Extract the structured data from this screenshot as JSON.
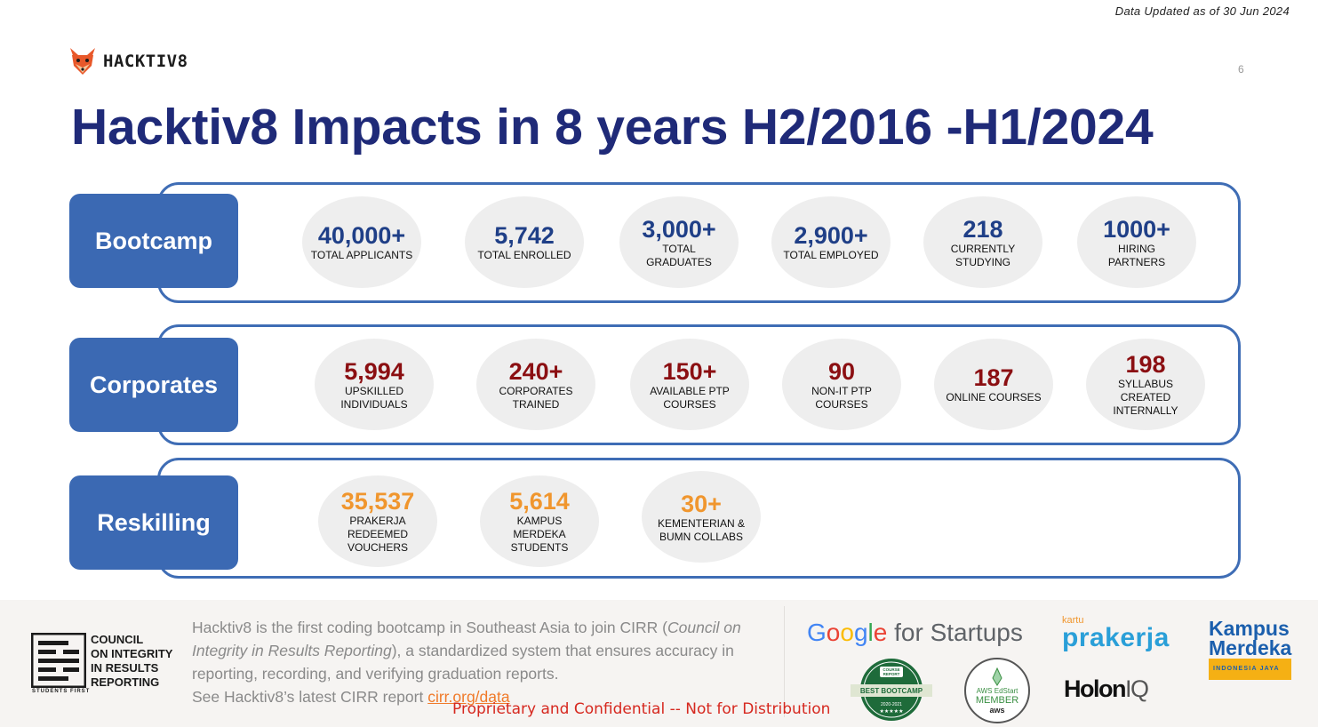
{
  "header": {
    "updated": "Data Updated as of 30 Jun 2024",
    "page_number": "6",
    "logo_text": "HACKTIV8",
    "title": "Hacktiv8 Impacts in 8 years H2/2016 -H1/2024"
  },
  "rows": [
    {
      "label": "Bootcamp",
      "color": "#1f3f87",
      "stats": [
        {
          "value": "40,000+",
          "label": "TOTAL APPLICANTS"
        },
        {
          "value": "5,742",
          "label": "TOTAL ENROLLED"
        },
        {
          "value": "3,000+",
          "label": "TOTAL\nGRADUATES"
        },
        {
          "value": "2,900+",
          "label": "TOTAL EMPLOYED"
        },
        {
          "value": "218",
          "label": "CURRENTLY\nSTUDYING"
        },
        {
          "value": "1000+",
          "label": "HIRING\nPARTNERS"
        }
      ]
    },
    {
      "label": "Corporates",
      "color": "#8b0f12",
      "stats": [
        {
          "value": "5,994",
          "label": "UPSKILLED\nINDIVIDUALS"
        },
        {
          "value": "240+",
          "label": "CORPORATES\nTRAINED"
        },
        {
          "value": "150+",
          "label": "AVAILABLE PTP\nCOURSES"
        },
        {
          "value": "90",
          "label": "NON-IT PTP\nCOURSES"
        },
        {
          "value": "187",
          "label": "ONLINE COURSES"
        },
        {
          "value": "198",
          "label": "SYLLABUS\nCREATED\nINTERNALLY"
        }
      ]
    },
    {
      "label": "Reskilling",
      "color": "#f0962e",
      "stats": [
        {
          "value": "35,537",
          "label": "PRAKERJA\nREDEEMED\nVOUCHERS"
        },
        {
          "value": "5,614",
          "label": "KAMPUS\nMERDEKA\nSTUDENTS"
        },
        {
          "value": "30+",
          "label": "KEMENTERIAN &\nBUMN  COLLABS"
        }
      ]
    }
  ],
  "footer": {
    "cirr_logo_lines": [
      "COUNCIL",
      "ON INTEGRITY",
      "IN RESULTS",
      "REPORTING"
    ],
    "cirr_tagline": "STUDENTS FIRST",
    "desc_part1": "Hacktiv8 is the first coding bootcamp in Southeast Asia to join CIRR (",
    "desc_italic": "Council on Integrity in Results Reporting",
    "desc_part2": "), a standardized system that ensures accuracy in reporting, recording, and verifying graduation reports.",
    "desc_part3": "See Hacktiv8’s latest CIRR report ",
    "link": "cirr.org/data",
    "confidential": "Proprietary and Confidential -- Not for Distribution",
    "partners": {
      "google_rest": " for Startups",
      "prakerja_small": "kartu",
      "prakerja_big": "prakerja",
      "kampus_line1": "Kampus",
      "kampus_line2": "Merdeka",
      "kampus_bar": "INDONESIA JAYA",
      "badge_top": "COURSE REPORT",
      "badge_main": "BEST BOOTCAMP",
      "badge_year": "2020-2021",
      "aws_line1": "AWS EdStart",
      "aws_line2": "MEMBER",
      "aws_line3": "aws",
      "holon": "Holon",
      "holon_iq": "IQ"
    }
  }
}
